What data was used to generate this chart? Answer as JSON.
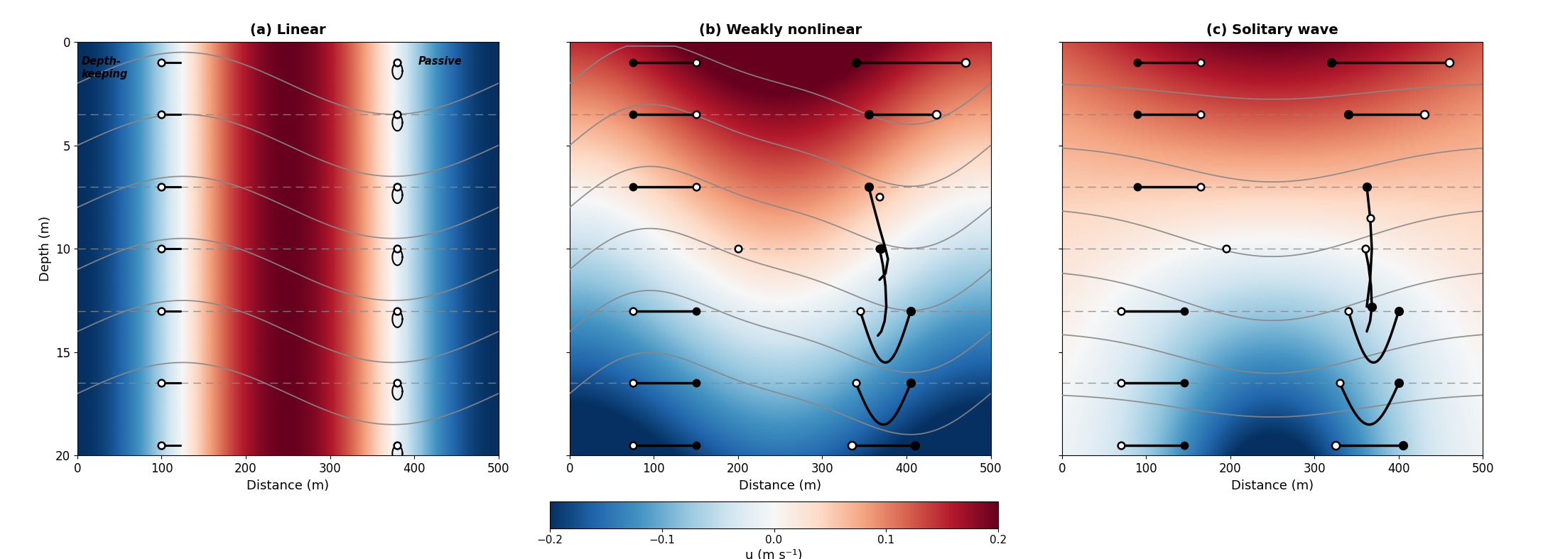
{
  "panel_titles": [
    "(a) Linear",
    "(b) Weakly nonlinear",
    "(c) Solitary wave"
  ],
  "xlim": [
    0,
    500
  ],
  "ylim_bottom": 20,
  "ylim_top": 0,
  "xlabel": "Distance (m)",
  "ylabel": "Depth (m)",
  "cmap_vmin": -0.2,
  "cmap_vmax": 0.2,
  "colorbar_ticks": [
    -0.2,
    -0.1,
    0.0,
    0.1,
    0.2
  ],
  "colorbar_ticklabels": [
    "−0.2",
    "−0.1",
    "0.0",
    "0.1",
    "0.2"
  ],
  "colorbar_label": "u (m s⁻¹)",
  "isopycnal_mean_depths": [
    2.0,
    5.0,
    8.0,
    11.0,
    14.0,
    17.0
  ],
  "dashed_depths": [
    3.5,
    7.0,
    10.0,
    13.0,
    16.5
  ],
  "label_dk": "Depth-\nkeeping",
  "label_passive": "Passive",
  "float_depths": [
    1.0,
    3.5,
    7.0,
    10.0,
    13.0,
    16.5,
    19.5
  ],
  "marker_size": 7,
  "line_width": 2.5
}
